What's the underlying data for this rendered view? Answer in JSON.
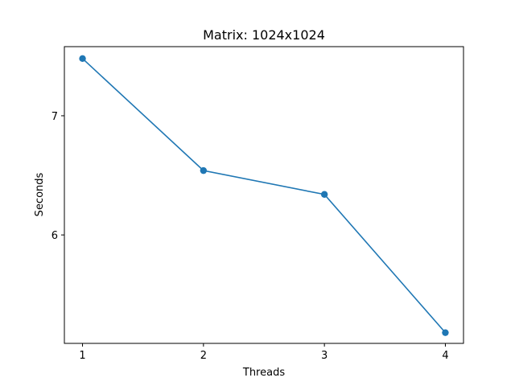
{
  "chart_data": {
    "type": "line",
    "title": "Matrix: 1024x1024",
    "xlabel": "Threads",
    "ylabel": "Seconds",
    "x": [
      1,
      2,
      3,
      4
    ],
    "series": [
      {
        "values": [
          7.48,
          6.54,
          6.34,
          5.18
        ],
        "color": "#1f77b4",
        "marker": "circle"
      }
    ],
    "xticks": [
      1,
      2,
      3,
      4
    ],
    "yticks": [
      6,
      7
    ],
    "xlim": [
      0.85,
      4.15
    ],
    "ylim": [
      5.09,
      7.58
    ],
    "grid": false
  }
}
